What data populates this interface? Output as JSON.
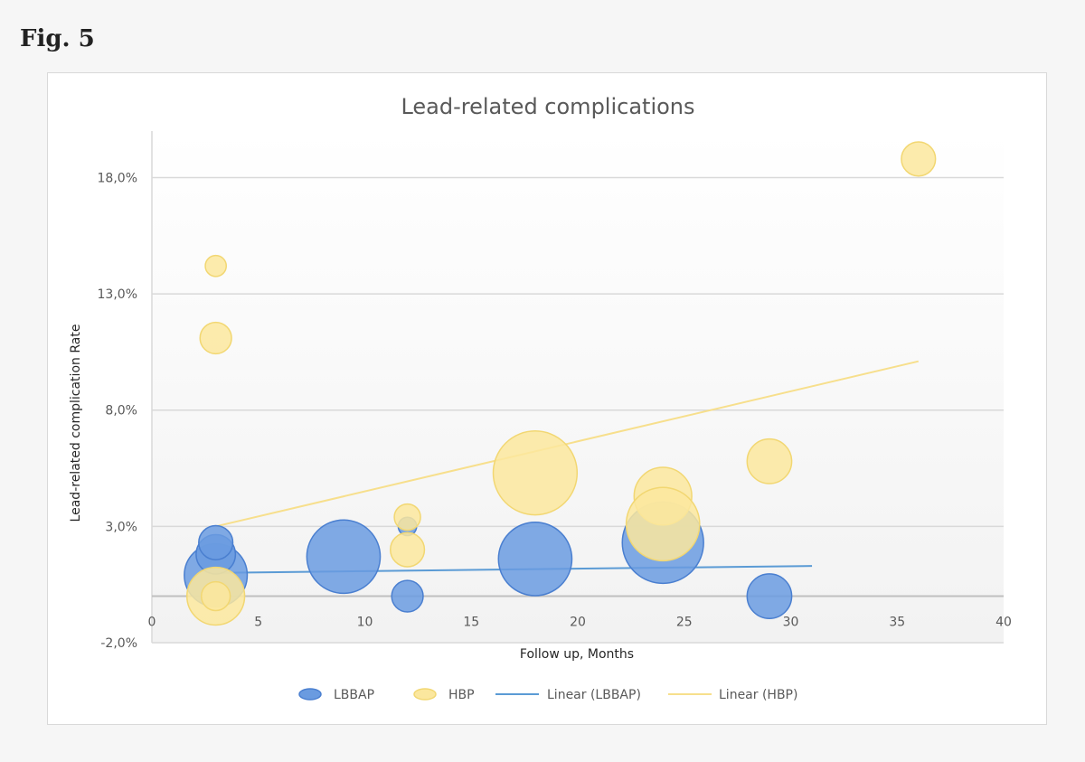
{
  "figure": {
    "label": "Fig. 5"
  },
  "chart_data": {
    "type": "scatter",
    "subtype": "bubble",
    "title": "Lead-related  complications",
    "xlabel": "Follow up, Months",
    "ylabel": "Lead-related complication Rate",
    "xlim": [
      0,
      40
    ],
    "ylim": [
      -2,
      20
    ],
    "x_ticks": [
      0,
      5,
      10,
      15,
      20,
      25,
      30,
      35,
      40
    ],
    "x_tick_labels": [
      "0",
      "5",
      "10",
      "15",
      "20",
      "25",
      "30",
      "35",
      "40"
    ],
    "y_ticks": [
      -2,
      3,
      8,
      13,
      18
    ],
    "y_tick_labels": [
      "-2,0%",
      "3,0%",
      "8,0%",
      "13,0%",
      "18,0%"
    ],
    "x_axis_at_y": 0,
    "grid": true,
    "legend_position": "bottom",
    "series": [
      {
        "name": "LBBAP",
        "color": "#5b8fd9",
        "points": [
          {
            "x": 3,
            "y": 0.9,
            "size": 1.2
          },
          {
            "x": 3,
            "y": 1.8,
            "size": 0.75
          },
          {
            "x": 3,
            "y": 2.3,
            "size": 0.65
          },
          {
            "x": 9,
            "y": 1.7,
            "size": 1.4
          },
          {
            "x": 12,
            "y": 3.0,
            "size": 0.35
          },
          {
            "x": 12,
            "y": 0.0,
            "size": 0.6
          },
          {
            "x": 18,
            "y": 1.6,
            "size": 1.4
          },
          {
            "x": 24,
            "y": 2.3,
            "size": 1.55
          },
          {
            "x": 29,
            "y": 0.0,
            "size": 0.85
          }
        ]
      },
      {
        "name": "HBP",
        "color": "#f7df8c",
        "points": [
          {
            "x": 3,
            "y": 14.2,
            "size": 0.4
          },
          {
            "x": 3,
            "y": 11.1,
            "size": 0.6
          },
          {
            "x": 3,
            "y": 0.0,
            "size": 1.1
          },
          {
            "x": 3,
            "y": 0.0,
            "size": 0.55
          },
          {
            "x": 12,
            "y": 3.4,
            "size": 0.5
          },
          {
            "x": 12,
            "y": 2.0,
            "size": 0.65
          },
          {
            "x": 18,
            "y": 5.3,
            "size": 1.6
          },
          {
            "x": 24,
            "y": 4.3,
            "size": 1.1
          },
          {
            "x": 24,
            "y": 3.1,
            "size": 1.4
          },
          {
            "x": 29,
            "y": 5.8,
            "size": 0.85
          },
          {
            "x": 36,
            "y": 18.8,
            "size": 0.65
          }
        ]
      }
    ],
    "trendlines": [
      {
        "name": "Linear (LBBAP)",
        "color": "#5b9bd5",
        "x": [
          3,
          31
        ],
        "y": [
          1.0,
          1.3
        ]
      },
      {
        "name": "Linear (HBP)",
        "color": "#f7df8c",
        "x": [
          3,
          36
        ],
        "y": [
          3.0,
          10.1
        ]
      }
    ]
  }
}
